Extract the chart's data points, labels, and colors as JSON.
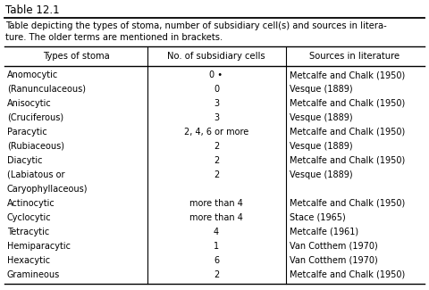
{
  "title": "Table 12.1",
  "caption_line1": "Table depicting the types of stoma, number of subsidiary cell(s) and sources in litera-",
  "caption_line2": "ture. The older terms are mentioned in brackets.",
  "col_headers": [
    "Types of stoma",
    "No. of subsidiary cells",
    "Sources in literature"
  ],
  "rows": [
    [
      "Anomocytic",
      "0 •",
      "Metcalfe and Chalk (1950)"
    ],
    [
      "(Ranunculaceous)",
      "0",
      "Vesque (1889)"
    ],
    [
      "Anisocytic",
      "3",
      "Metcalfe and Chalk (1950)"
    ],
    [
      "(Cruciferous)",
      "3",
      "Vesque (1889)"
    ],
    [
      "Paracytic",
      "2, 4, 6 or more",
      "Metcalfe and Chalk (1950)"
    ],
    [
      "(Rubiaceous)",
      "2",
      "Vesque (1889)"
    ],
    [
      "Diacytic",
      "2",
      "Metcalfe and Chalk (1950)"
    ],
    [
      "(Labiatous or",
      "2",
      "Vesque (1889)"
    ],
    [
      "Caryophyllaceous)",
      "",
      ""
    ],
    [
      "Actinocytic",
      "more than 4",
      "Metcalfe and Chalk (1950)"
    ],
    [
      "Cyclocytic",
      "more than 4",
      "Stace (1965)"
    ],
    [
      "Tetracytic",
      "4",
      "Metcalfe (1961)"
    ],
    [
      "Hemiparacytic",
      "1",
      "Van Cotthem (1970)"
    ],
    [
      "Hexacytic",
      "6",
      "Van Cotthem (1970)"
    ],
    [
      "Gramineous",
      "2",
      "Metcalfe and Chalk (1950)"
    ]
  ],
  "bg_color": "#ffffff",
  "line_color": "#000000",
  "font_size": 7.0,
  "header_font_size": 7.2,
  "title_font_size": 8.5,
  "caption_font_size": 7.2
}
